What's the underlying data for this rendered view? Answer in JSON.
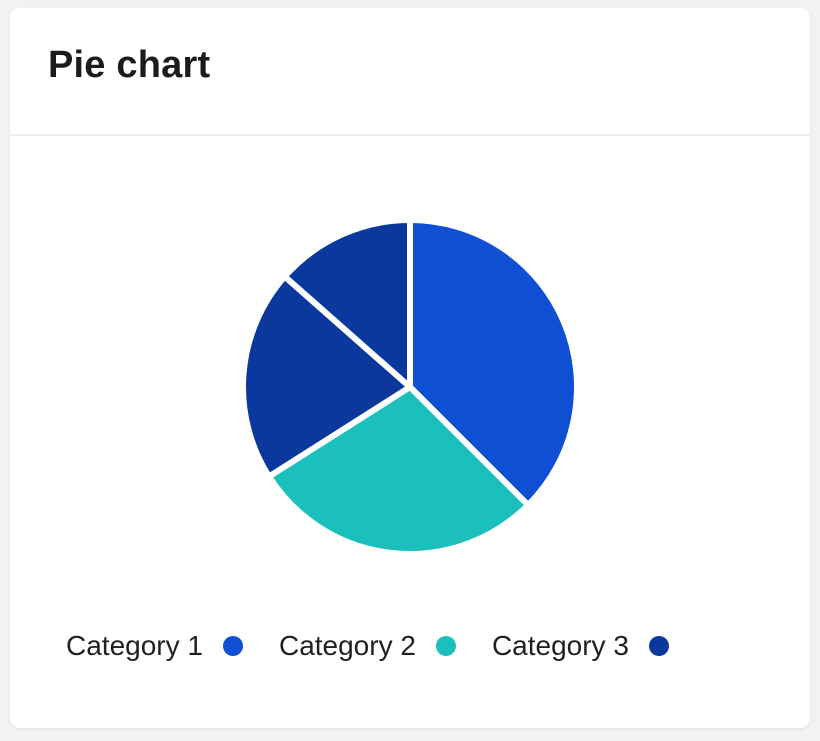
{
  "card": {
    "title": "Pie chart"
  },
  "colors": {
    "category_1": "#0e4fd4",
    "category_2": "#1bbfbc",
    "category_3": "#0a389c",
    "slice_border": "#ffffff"
  },
  "legend": [
    {
      "label": "Category 1",
      "color": "#0e4fd4"
    },
    {
      "label": "Category 2",
      "color": "#1bbfbc"
    },
    {
      "label": "Category 3",
      "color": "#0a389c"
    }
  ],
  "chart_data": {
    "type": "pie",
    "title": "Pie chart",
    "legend_position": "bottom",
    "slices": [
      {
        "category": "Category 1",
        "value": 37.5,
        "color": "#0e4fd4"
      },
      {
        "category": "Category 2",
        "value": 28.5,
        "color": "#1bbfbc"
      },
      {
        "category": "Category 3",
        "value": 20.5,
        "color": "#0a389c"
      },
      {
        "category": "Category 3",
        "value": 13.5,
        "color": "#0a389c"
      }
    ]
  }
}
